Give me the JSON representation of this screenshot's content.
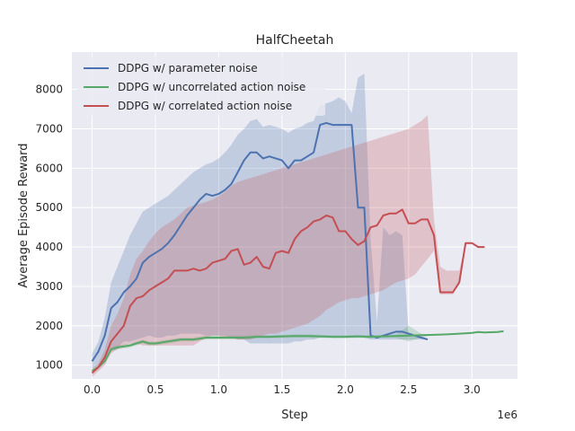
{
  "chart_data": {
    "type": "line",
    "title": "HalfCheetah",
    "xlabel": "Step",
    "ylabel": "Average Episode Reward",
    "x_offset_label": "1e6",
    "xlim": [
      -0.16,
      3.36
    ],
    "ylim": [
      650,
      8950
    ],
    "x_ticks": [
      0.0,
      0.5,
      1.0,
      1.5,
      2.0,
      2.5,
      3.0
    ],
    "x_tick_labels": [
      "0.0",
      "0.5",
      "1.0",
      "1.5",
      "2.0",
      "2.5",
      "3.0"
    ],
    "y_ticks": [
      1000,
      2000,
      3000,
      4000,
      5000,
      6000,
      7000,
      8000
    ],
    "y_tick_labels": [
      "1000",
      "2000",
      "3000",
      "4000",
      "5000",
      "6000",
      "7000",
      "8000"
    ],
    "grid": true,
    "legend_position": "top-left",
    "series": [
      {
        "name": "DDPG w/ parameter noise",
        "color": "#4c72b0",
        "x": [
          0.0,
          0.05,
          0.1,
          0.15,
          0.2,
          0.25,
          0.3,
          0.35,
          0.4,
          0.45,
          0.5,
          0.55,
          0.6,
          0.65,
          0.7,
          0.75,
          0.8,
          0.85,
          0.9,
          0.95,
          1.0,
          1.05,
          1.1,
          1.15,
          1.2,
          1.25,
          1.3,
          1.35,
          1.4,
          1.45,
          1.5,
          1.55,
          1.6,
          1.65,
          1.7,
          1.75,
          1.8,
          1.85,
          1.9,
          1.95,
          2.0,
          2.05,
          2.1,
          2.15,
          2.2,
          2.25,
          2.3,
          2.35,
          2.4,
          2.45,
          2.5,
          2.55,
          2.6,
          2.65
        ],
        "y": [
          1100,
          1350,
          1750,
          2450,
          2600,
          2850,
          3000,
          3200,
          3600,
          3750,
          3850,
          3950,
          4100,
          4300,
          4550,
          4800,
          5000,
          5200,
          5350,
          5300,
          5350,
          5450,
          5600,
          5900,
          6200,
          6400,
          6400,
          6250,
          6300,
          6250,
          6200,
          6000,
          6200,
          6200,
          6300,
          6400,
          7100,
          7150,
          7100,
          7100,
          7100,
          7100,
          5000,
          5000,
          1750,
          1700,
          1750,
          1800,
          1850,
          1850,
          1800,
          1750,
          1700,
          1650
        ],
        "band_low": [
          900,
          1000,
          1150,
          1400,
          1450,
          1600,
          1600,
          1650,
          1700,
          1750,
          1700,
          1700,
          1750,
          1750,
          1800,
          1800,
          1800,
          1800,
          1750,
          1750,
          1750,
          1750,
          1700,
          1650,
          1650,
          1550,
          1550,
          1550,
          1550,
          1550,
          1550,
          1550,
          1600,
          1600,
          1650,
          1650,
          1700,
          1700,
          1700,
          1700,
          1700,
          1700,
          1700,
          1700,
          1650,
          1650,
          1650,
          1650,
          1650,
          1650,
          1650,
          1650,
          1650,
          1650
        ],
        "band_high": [
          1300,
          1600,
          2200,
          3100,
          3500,
          3900,
          4300,
          4600,
          4900,
          5000,
          5100,
          5200,
          5300,
          5450,
          5600,
          5750,
          5900,
          6000,
          6100,
          6150,
          6250,
          6400,
          6600,
          6850,
          7000,
          7200,
          7250,
          7050,
          7100,
          7050,
          7000,
          6900,
          7000,
          7050,
          7150,
          7200,
          7600,
          7650,
          7700,
          7800,
          7700,
          7400,
          8300,
          8400,
          4200,
          2100,
          4500,
          4300,
          4400,
          4300,
          1800,
          1750,
          1700,
          1650
        ]
      },
      {
        "name": "DDPG w/ uncorrelated action noise",
        "color": "#55a868",
        "x": [
          0.0,
          0.05,
          0.1,
          0.15,
          0.2,
          0.3,
          0.35,
          0.4,
          0.45,
          0.5,
          0.6,
          0.7,
          0.8,
          0.9,
          1.0,
          1.1,
          1.2,
          1.3,
          1.4,
          1.5,
          1.6,
          1.7,
          1.8,
          1.9,
          2.0,
          2.1,
          2.2,
          2.3,
          2.4,
          2.5,
          2.6,
          2.7,
          2.8,
          2.9,
          3.0,
          3.05,
          3.1,
          3.2,
          3.25
        ],
        "y": [
          850,
          950,
          1100,
          1400,
          1450,
          1500,
          1550,
          1600,
          1550,
          1550,
          1600,
          1650,
          1650,
          1700,
          1700,
          1700,
          1700,
          1720,
          1720,
          1730,
          1740,
          1740,
          1730,
          1720,
          1720,
          1730,
          1720,
          1730,
          1740,
          1750,
          1760,
          1770,
          1780,
          1800,
          1820,
          1840,
          1830,
          1840,
          1860
        ],
        "band_low": [
          800,
          900,
          1050,
          1350,
          1400,
          1450,
          1500,
          1550,
          1500,
          1500,
          1550,
          1600,
          1600,
          1650,
          1650,
          1650,
          1650,
          1680,
          1680,
          1690,
          1700,
          1700,
          1690,
          1680,
          1680,
          1690,
          1680,
          1690,
          1700,
          1600,
          1700,
          1770,
          1780,
          1800,
          1820,
          1840,
          1830,
          1840,
          1860
        ],
        "band_high": [
          900,
          1000,
          1150,
          1450,
          1500,
          1550,
          1600,
          1650,
          1600,
          1600,
          1650,
          1700,
          1700,
          1750,
          1750,
          1750,
          1750,
          1760,
          1760,
          1770,
          1780,
          1780,
          1770,
          1760,
          1760,
          1770,
          1760,
          1770,
          1780,
          2000,
          1800,
          1770,
          1780,
          1800,
          1820,
          1840,
          1830,
          1840,
          1860
        ]
      },
      {
        "name": "DDPG w/ correlated action noise",
        "color": "#c44e52",
        "x": [
          0.0,
          0.05,
          0.1,
          0.15,
          0.2,
          0.25,
          0.3,
          0.35,
          0.4,
          0.45,
          0.5,
          0.55,
          0.6,
          0.65,
          0.7,
          0.75,
          0.8,
          0.85,
          0.9,
          0.95,
          1.0,
          1.05,
          1.1,
          1.15,
          1.2,
          1.25,
          1.3,
          1.35,
          1.4,
          1.45,
          1.5,
          1.55,
          1.6,
          1.65,
          1.7,
          1.75,
          1.8,
          1.85,
          1.9,
          1.95,
          2.0,
          2.05,
          2.1,
          2.15,
          2.2,
          2.25,
          2.3,
          2.35,
          2.4,
          2.45,
          2.5,
          2.55,
          2.6,
          2.65,
          2.7,
          2.75,
          2.8,
          2.85,
          2.9,
          2.95,
          3.0,
          3.05,
          3.1
        ],
        "y": [
          800,
          950,
          1200,
          1600,
          1800,
          2000,
          2500,
          2700,
          2750,
          2900,
          3000,
          3100,
          3200,
          3400,
          3400,
          3400,
          3450,
          3400,
          3450,
          3600,
          3650,
          3700,
          3900,
          3950,
          3550,
          3600,
          3750,
          3500,
          3450,
          3850,
          3900,
          3850,
          4200,
          4400,
          4500,
          4650,
          4700,
          4800,
          4750,
          4400,
          4400,
          4200,
          4050,
          4150,
          4500,
          4550,
          4800,
          4850,
          4850,
          4950,
          4600,
          4600,
          4700,
          4700,
          4300,
          2850,
          2850,
          2850,
          3100,
          4100,
          4100,
          4000,
          4000
        ],
        "band_low": [
          700,
          850,
          1000,
          1300,
          1400,
          1500,
          1550,
          1550,
          1500,
          1500,
          1500,
          1500,
          1500,
          1500,
          1500,
          1500,
          1500,
          1600,
          1700,
          1750,
          1750,
          1700,
          1700,
          1650,
          1650,
          1650,
          1700,
          1750,
          1800,
          1800,
          1850,
          1900,
          1950,
          2000,
          2050,
          2150,
          2250,
          2400,
          2500,
          2600,
          2650,
          2700,
          2700,
          2750,
          2800,
          2850,
          2900,
          3000,
          3100,
          3150,
          3200,
          3300,
          3500,
          3700,
          3900,
          2800,
          2800,
          2800,
          3100,
          4100,
          4100,
          4000,
          4000
        ],
        "band_high": [
          900,
          1050,
          1400,
          2000,
          2300,
          2700,
          3300,
          3700,
          3900,
          4150,
          4350,
          4500,
          4600,
          4700,
          4850,
          5000,
          5050,
          5100,
          5150,
          5200,
          5300,
          5400,
          5550,
          5650,
          5700,
          5750,
          5800,
          5850,
          5900,
          5950,
          6000,
          6050,
          6100,
          6150,
          6200,
          6250,
          6300,
          6350,
          6400,
          6450,
          6500,
          6550,
          6600,
          6650,
          6700,
          6750,
          6800,
          6850,
          6900,
          6950,
          7000,
          7100,
          7200,
          7350,
          4700,
          3500,
          3400,
          3400,
          3400,
          4100,
          4100,
          4000,
          4000
        ]
      }
    ]
  }
}
